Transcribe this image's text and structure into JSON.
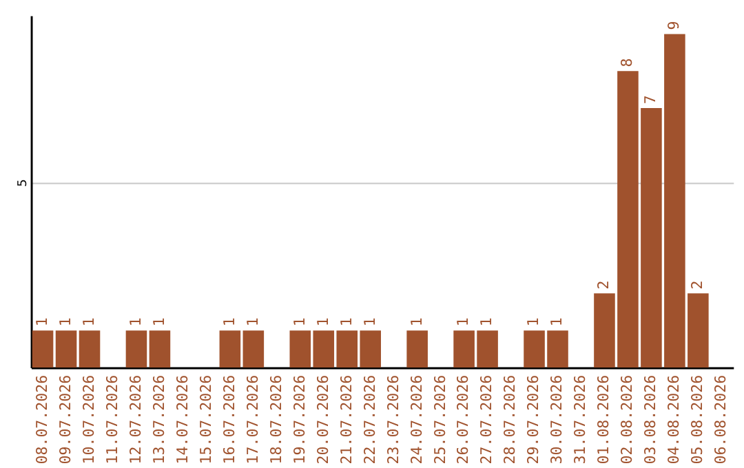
{
  "chart_data": {
    "type": "bar",
    "categories": [
      "08.07.2026",
      "09.07.2026",
      "10.07.2026",
      "11.07.2026",
      "12.07.2026",
      "13.07.2026",
      "14.07.2026",
      "15.07.2026",
      "16.07.2026",
      "17.07.2026",
      "18.07.2026",
      "19.07.2026",
      "20.07.2026",
      "21.07.2026",
      "22.07.2026",
      "23.07.2026",
      "24.07.2026",
      "25.07.2026",
      "26.07.2026",
      "27.07.2026",
      "28.07.2026",
      "29.07.2026",
      "30.07.2026",
      "31.07.2026",
      "01.08.2026",
      "02.08.2026",
      "03.08.2026",
      "04.08.2026",
      "05.08.2026",
      "06.08.2026"
    ],
    "values": [
      1,
      1,
      1,
      0,
      1,
      1,
      0,
      0,
      1,
      1,
      0,
      1,
      1,
      1,
      1,
      0,
      1,
      0,
      1,
      1,
      0,
      1,
      1,
      0,
      2,
      8,
      7,
      9,
      2,
      0
    ],
    "value_labels": [
      "1",
      "1",
      "1",
      null,
      "1",
      "1",
      null,
      null,
      "1",
      "1",
      null,
      "1",
      "1",
      "1",
      "1",
      null,
      "1",
      null,
      "1",
      "1",
      null,
      "1",
      "1",
      null,
      "2",
      "8",
      "7",
      "9",
      "2",
      null
    ],
    "color": "#a0522d",
    "ylim": [
      0,
      9.5
    ],
    "yticks": [
      5
    ],
    "grid": "y"
  }
}
